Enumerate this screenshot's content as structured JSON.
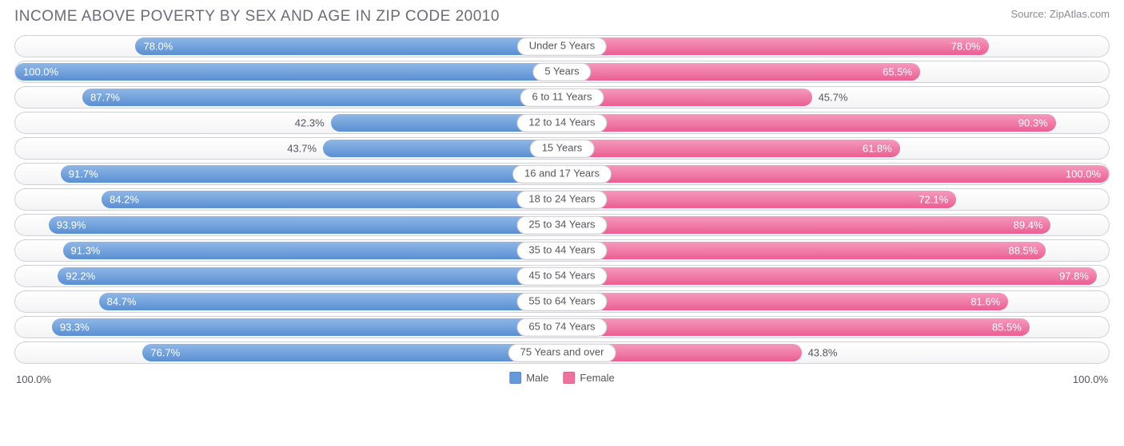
{
  "title": "INCOME ABOVE POVERTY BY SEX AND AGE IN ZIP CODE 20010",
  "source": "Source: ZipAtlas.com",
  "axis": {
    "left": "100.0%",
    "right": "100.0%"
  },
  "legend": {
    "male": {
      "label": "Male",
      "color": "#6699d8"
    },
    "female": {
      "label": "Female",
      "color": "#ef719e"
    }
  },
  "style": {
    "male_gradient_top": "#8fb7e6",
    "male_gradient_bottom": "#5a8fd2",
    "female_gradient_top": "#f59abc",
    "female_gradient_bottom": "#ea5f92",
    "inside_threshold": 50
  },
  "rows": [
    {
      "label": "Under 5 Years",
      "male": 78.0,
      "female": 78.0
    },
    {
      "label": "5 Years",
      "male": 100.0,
      "female": 65.5
    },
    {
      "label": "6 to 11 Years",
      "male": 87.7,
      "female": 45.7
    },
    {
      "label": "12 to 14 Years",
      "male": 42.3,
      "female": 90.3
    },
    {
      "label": "15 Years",
      "male": 43.7,
      "female": 61.8
    },
    {
      "label": "16 and 17 Years",
      "male": 91.7,
      "female": 100.0
    },
    {
      "label": "18 to 24 Years",
      "male": 84.2,
      "female": 72.1
    },
    {
      "label": "25 to 34 Years",
      "male": 93.9,
      "female": 89.4
    },
    {
      "label": "35 to 44 Years",
      "male": 91.3,
      "female": 88.5
    },
    {
      "label": "45 to 54 Years",
      "male": 92.2,
      "female": 97.8
    },
    {
      "label": "55 to 64 Years",
      "male": 84.7,
      "female": 81.6
    },
    {
      "label": "65 to 74 Years",
      "male": 93.3,
      "female": 85.5
    },
    {
      "label": "75 Years and over",
      "male": 76.7,
      "female": 43.8
    }
  ]
}
